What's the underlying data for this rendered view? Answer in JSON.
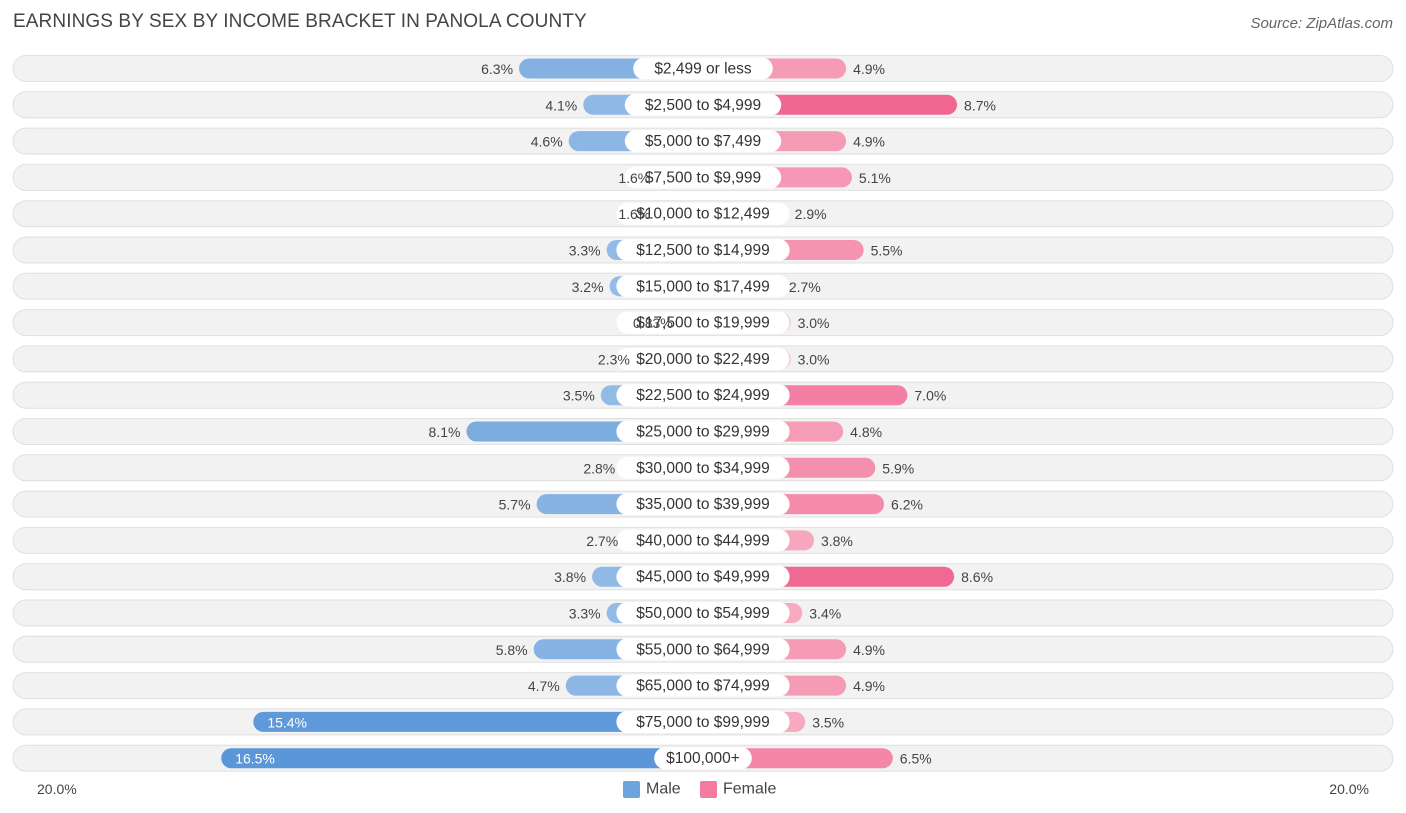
{
  "chart_data": {
    "type": "bar",
    "orientation": "horizontal-diverging",
    "title": "EARNINGS BY SEX BY INCOME BRACKET IN PANOLA COUNTY",
    "source": "Source: ZipAtlas.com",
    "categories": [
      "$2,499 or less",
      "$2,500 to $4,999",
      "$5,000 to $7,499",
      "$7,500 to $9,999",
      "$10,000 to $12,499",
      "$12,500 to $14,999",
      "$15,000 to $17,499",
      "$17,500 to $19,999",
      "$20,000 to $22,499",
      "$22,500 to $24,999",
      "$25,000 to $29,999",
      "$30,000 to $34,999",
      "$35,000 to $39,999",
      "$40,000 to $44,999",
      "$45,000 to $49,999",
      "$50,000 to $54,999",
      "$55,000 to $64,999",
      "$65,000 to $74,999",
      "$75,000 to $99,999",
      "$100,000+"
    ],
    "series": [
      {
        "name": "Male",
        "color": "#6fa3dc",
        "values": [
          6.3,
          4.1,
          4.6,
          1.6,
          1.6,
          3.3,
          3.2,
          0.83,
          2.3,
          3.5,
          8.1,
          2.8,
          5.7,
          2.7,
          3.8,
          3.3,
          5.8,
          4.7,
          15.4,
          16.5
        ],
        "labels": [
          "6.3%",
          "4.1%",
          "4.6%",
          "1.6%",
          "1.6%",
          "3.3%",
          "3.2%",
          "0.83%",
          "2.3%",
          "3.5%",
          "8.1%",
          "2.8%",
          "5.7%",
          "2.7%",
          "3.8%",
          "3.3%",
          "5.8%",
          "4.7%",
          "15.4%",
          "16.5%"
        ]
      },
      {
        "name": "Female",
        "color": "#f47a9f",
        "values": [
          4.9,
          8.7,
          4.9,
          5.1,
          2.9,
          5.5,
          2.7,
          3.0,
          3.0,
          7.0,
          4.8,
          5.9,
          6.2,
          3.8,
          8.6,
          3.4,
          4.9,
          4.9,
          3.5,
          6.5
        ],
        "labels": [
          "4.9%",
          "8.7%",
          "4.9%",
          "5.1%",
          "2.9%",
          "5.5%",
          "2.7%",
          "3.0%",
          "3.0%",
          "7.0%",
          "4.8%",
          "5.9%",
          "6.2%",
          "3.8%",
          "8.6%",
          "3.4%",
          "4.9%",
          "4.9%",
          "3.5%",
          "6.5%"
        ]
      }
    ],
    "xlim": [
      0,
      20
    ],
    "axis_labels": {
      "left": "20.0%",
      "right": "20.0%"
    },
    "legend": {
      "position": "bottom-center",
      "entries": [
        "Male",
        "Female"
      ]
    },
    "colors": {
      "male_light": "#a9c9ec",
      "male_dark": "#5b97d8",
      "female_light": "#f8aec4",
      "female_dark": "#f06792"
    }
  }
}
